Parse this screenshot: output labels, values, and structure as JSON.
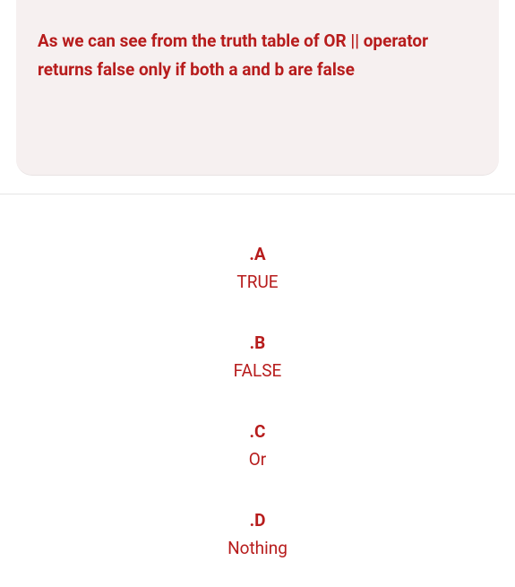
{
  "question": {
    "text": "As we can see from the truth table of OR || operator returns false only if both a and b are false",
    "background_color": "#f6f0f0",
    "text_color": "#b71c1c",
    "font_weight": 700,
    "font_size": 19
  },
  "options": [
    {
      "label": ".A",
      "value": "TRUE"
    },
    {
      "label": ".B",
      "value": "FALSE"
    },
    {
      "label": ".C",
      "value": "Or"
    },
    {
      "label": ".D",
      "value": "Nothing"
    }
  ],
  "option_style": {
    "label_color": "#b71c1c",
    "value_color": "#b71c1c",
    "label_font_weight": 700,
    "value_font_weight": 400,
    "font_size": 19
  }
}
